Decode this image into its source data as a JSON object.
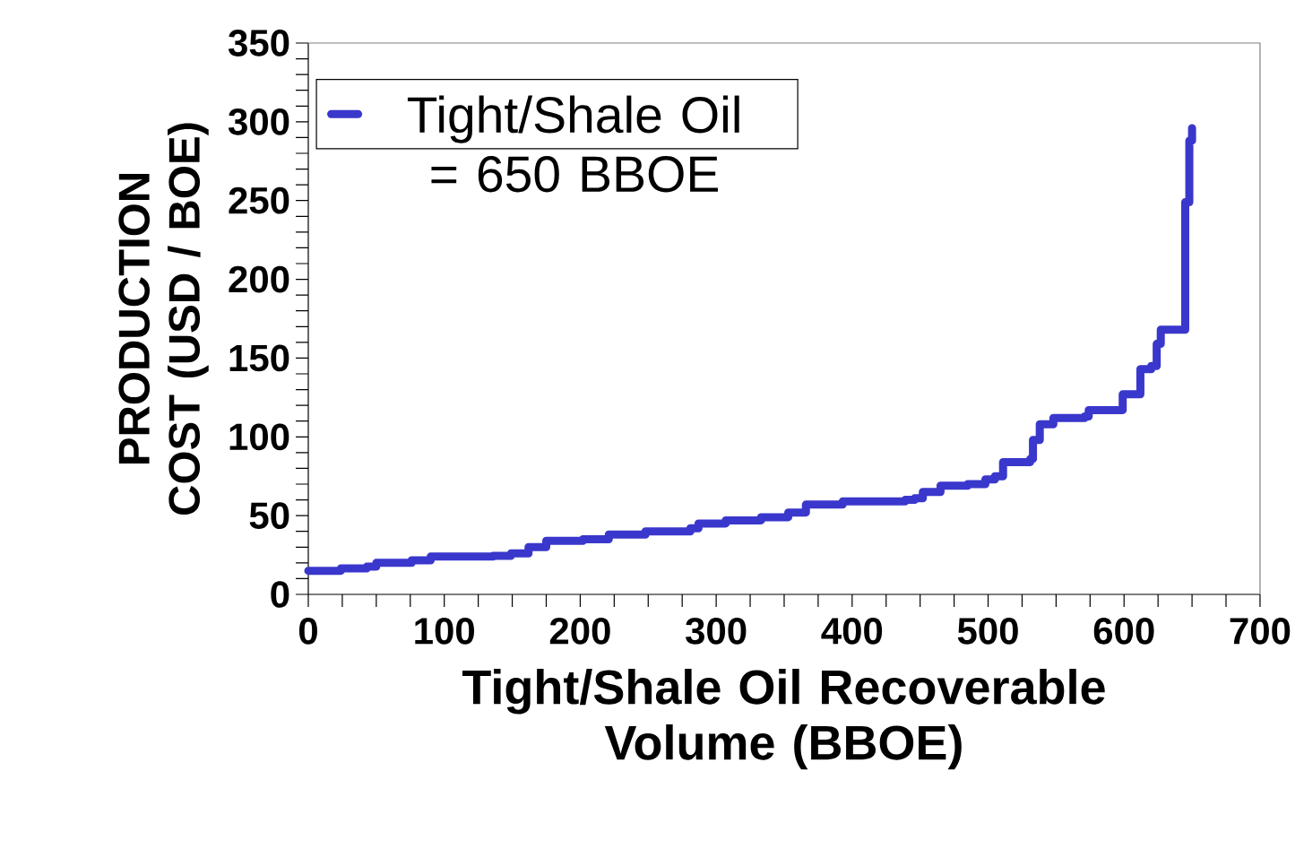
{
  "chart_data": {
    "type": "step",
    "xlabel": "Tight/Shale Oil Recoverable Volume (BBOE)",
    "ylabel": "PRODUCTION COST (USD / BOE)",
    "xlim": [
      0,
      700
    ],
    "ylim": [
      0,
      350
    ],
    "xticks": [
      0,
      {
        "value": 25,
        "label": null
      },
      {
        "value": 50,
        "label": null
      },
      {
        "value": 75,
        "label": null
      },
      100,
      {
        "value": 125,
        "label": null
      },
      {
        "value": 150,
        "label": null
      },
      {
        "value": 175,
        "label": null
      },
      200,
      {
        "value": 225,
        "label": null
      },
      {
        "value": 250,
        "label": null
      },
      {
        "value": 275,
        "label": null
      },
      300,
      {
        "value": 325,
        "label": null
      },
      {
        "value": 350,
        "label": null
      },
      {
        "value": 375,
        "label": null
      },
      400,
      {
        "value": 425,
        "label": null
      },
      {
        "value": 450,
        "label": null
      },
      {
        "value": 475,
        "label": null
      },
      500,
      {
        "value": 525,
        "label": null
      },
      {
        "value": 550,
        "label": null
      },
      {
        "value": 575,
        "label": null
      },
      600,
      {
        "value": 625,
        "label": null
      },
      {
        "value": 650,
        "label": null
      },
      {
        "value": 675,
        "label": null
      },
      700
    ],
    "yticks": [
      0,
      {
        "value": 10,
        "label": null
      },
      {
        "value": 20,
        "label": null
      },
      {
        "value": 30,
        "label": null
      },
      {
        "value": 40,
        "label": null
      },
      50,
      {
        "value": 60,
        "label": null
      },
      {
        "value": 70,
        "label": null
      },
      {
        "value": 80,
        "label": null
      },
      {
        "value": 90,
        "label": null
      },
      100,
      {
        "value": 110,
        "label": null
      },
      {
        "value": 120,
        "label": null
      },
      {
        "value": 130,
        "label": null
      },
      {
        "value": 140,
        "label": null
      },
      150,
      {
        "value": 160,
        "label": null
      },
      {
        "value": 170,
        "label": null
      },
      {
        "value": 180,
        "label": null
      },
      {
        "value": 190,
        "label": null
      },
      200,
      {
        "value": 210,
        "label": null
      },
      {
        "value": 220,
        "label": null
      },
      {
        "value": 230,
        "label": null
      },
      {
        "value": 240,
        "label": null
      },
      250,
      {
        "value": 260,
        "label": null
      },
      {
        "value": 270,
        "label": null
      },
      {
        "value": 280,
        "label": null
      },
      {
        "value": 290,
        "label": null
      },
      300,
      {
        "value": 310,
        "label": null
      },
      {
        "value": 320,
        "label": null
      },
      {
        "value": 330,
        "label": null
      },
      {
        "value": 340,
        "label": null
      },
      350
    ],
    "legend": "top left",
    "grid": false,
    "marker": "none",
    "line_style": "solid",
    "series": [
      {
        "name": "Tight/Shale Oil = 650 BBOE",
        "color": "#3a37cc",
        "x": [
          0,
          24,
          43,
          50,
          76,
          90,
          136,
          149,
          162,
          175,
          202,
          221,
          248,
          281,
          287,
          307,
          333,
          353,
          366,
          393,
          439,
          446,
          452,
          465,
          485,
          498,
          505,
          511,
          531,
          533,
          538,
          548,
          571,
          574,
          597,
          599,
          610,
          612,
          620,
          624,
          627,
          645,
          645,
          648,
          650
        ],
        "values": [
          15,
          16.5,
          17.6,
          20,
          21.6,
          24,
          24.5,
          26,
          30,
          34,
          35,
          38,
          40,
          42,
          45,
          47,
          49,
          52,
          57,
          59,
          60,
          61,
          65,
          69,
          70,
          73,
          75,
          84,
          86,
          98,
          108,
          112,
          113,
          117,
          117,
          127,
          127,
          143,
          145,
          159,
          168,
          169,
          249,
          288,
          296
        ]
      }
    ]
  }
}
